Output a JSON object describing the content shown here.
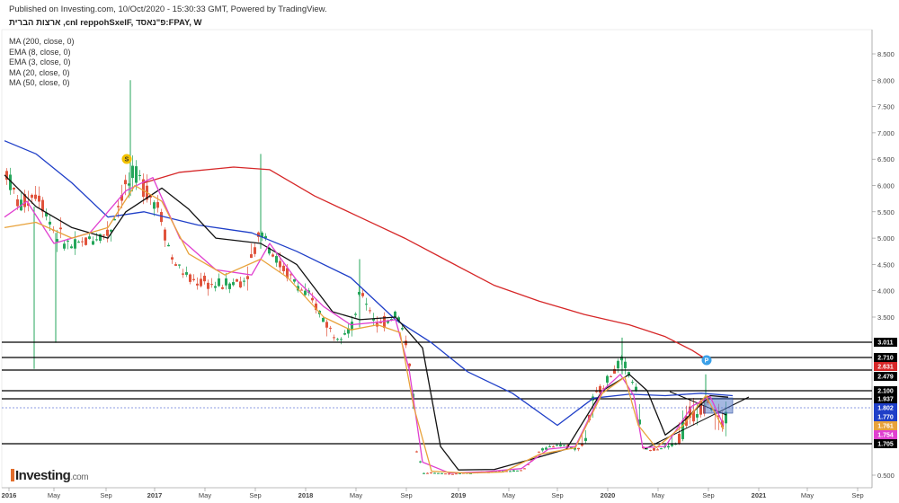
{
  "header": {
    "published": "Published on Investing.com, 10/Oct/2020 - 15:30:33 GMT, Powered by TradingView.",
    "title": "ארצות הברית ,cnI reppohSxelF, פ\"נאסד:FPAY, W"
  },
  "indicators": [
    "MA (200, close, 0)",
    "EMA (8, close, 0)",
    "EMA (3, close, 0)",
    "MA (20, close, 0)",
    "MA (50, close, 0)"
  ],
  "watermark": {
    "brand": "Investing",
    "suffix": ".com"
  },
  "colors": {
    "up": "#26a65b",
    "down": "#e0533c",
    "ma200": "#d62728",
    "ma50": "#1f3fc8",
    "ma20": "#111111",
    "ema8": "#e040d0",
    "ema3": "#e8a23a",
    "hline": "#000000"
  },
  "chart_data": {
    "type": "candlestick",
    "y_ticks": [
      "8.500",
      "8.000",
      "7.500",
      "7.000",
      "6.500",
      "6.000",
      "5.500",
      "5.000",
      "4.500",
      "4.000",
      "3.500",
      "0.500"
    ],
    "x_ticks": [
      "2016",
      "May",
      "Sep",
      "2017",
      "May",
      "Sep",
      "2018",
      "May",
      "Sep",
      "2019",
      "May",
      "Sep",
      "2020",
      "May",
      "Sep",
      "2021",
      "May",
      "Sep"
    ],
    "horizontal_levels": [
      "3.011",
      "2.710",
      "2.479",
      "2.100",
      "1.937",
      "1.705"
    ],
    "price_tags": [
      {
        "label": "3.011",
        "color": "#000000"
      },
      {
        "label": "2.710",
        "color": "#000000"
      },
      {
        "label": "2.631",
        "color": "#d62728"
      },
      {
        "label": "2.479",
        "color": "#000000"
      },
      {
        "label": "2.100",
        "color": "#000000"
      },
      {
        "label": "1.937",
        "color": "#000000"
      },
      {
        "label": "1.802",
        "color": "#1f3fc8"
      },
      {
        "label": "1.770",
        "color": "#1f3fc8"
      },
      {
        "label": "1.761",
        "color": "#e8a23a"
      },
      {
        "label": "1.754",
        "color": "#e040d0"
      },
      {
        "label": "1.705",
        "color": "#000000"
      }
    ],
    "markers": [
      {
        "label": "S",
        "color": "#f2c200"
      },
      {
        "label": "P",
        "color": "#3aa0e8"
      }
    ],
    "series": [
      {
        "name": "MA (200, close, 0)",
        "points": [
          [
            160,
            6.05
          ],
          [
            200,
            6.25
          ],
          [
            260,
            6.35
          ],
          [
            300,
            6.3
          ],
          [
            350,
            5.8
          ],
          [
            400,
            5.4
          ],
          [
            450,
            5.0
          ],
          [
            500,
            4.55
          ],
          [
            550,
            4.1
          ],
          [
            600,
            3.8
          ],
          [
            650,
            3.55
          ],
          [
            700,
            3.35
          ],
          [
            740,
            3.12
          ],
          [
            770,
            2.85
          ],
          [
            788,
            2.65
          ]
        ]
      },
      {
        "name": "MA (50, close, 0)",
        "points": [
          [
            5,
            6.85
          ],
          [
            40,
            6.6
          ],
          [
            80,
            6.05
          ],
          [
            120,
            5.4
          ],
          [
            160,
            5.5
          ],
          [
            220,
            5.25
          ],
          [
            280,
            5.1
          ],
          [
            330,
            4.75
          ],
          [
            390,
            4.25
          ],
          [
            440,
            3.45
          ],
          [
            480,
            3.0
          ],
          [
            520,
            2.45
          ],
          [
            570,
            2.05
          ],
          [
            620,
            1.8
          ],
          [
            660,
            1.95
          ],
          [
            700,
            2.03
          ],
          [
            740,
            2.0
          ],
          [
            780,
            2.05
          ],
          [
            815,
            2.0
          ]
        ]
      },
      {
        "name": "MA (20, close, 0)",
        "points": [
          [
            5,
            6.2
          ],
          [
            40,
            5.6
          ],
          [
            80,
            5.2
          ],
          [
            120,
            5.0
          ],
          [
            140,
            5.5
          ],
          [
            180,
            5.95
          ],
          [
            210,
            5.55
          ],
          [
            240,
            5.0
          ],
          [
            290,
            4.9
          ],
          [
            330,
            4.5
          ],
          [
            370,
            3.6
          ],
          [
            400,
            3.45
          ],
          [
            440,
            3.5
          ],
          [
            470,
            2.9
          ],
          [
            490,
            1.6
          ],
          [
            510,
            0.7
          ],
          [
            550,
            0.72
          ],
          [
            590,
            1.1
          ],
          [
            630,
            1.5
          ],
          [
            670,
            2.1
          ],
          [
            700,
            2.4
          ],
          [
            720,
            2.1
          ],
          [
            740,
            1.75
          ],
          [
            760,
            1.82
          ],
          [
            790,
            2.0
          ],
          [
            810,
            1.97
          ]
        ]
      },
      {
        "name": "EMA (8, close, 0)",
        "points": [
          [
            5,
            5.4
          ],
          [
            30,
            5.7
          ],
          [
            60,
            4.9
          ],
          [
            100,
            5.1
          ],
          [
            140,
            5.9
          ],
          [
            170,
            6.15
          ],
          [
            200,
            5.0
          ],
          [
            240,
            4.4
          ],
          [
            280,
            4.3
          ],
          [
            300,
            4.9
          ],
          [
            330,
            4.2
          ],
          [
            360,
            3.7
          ],
          [
            390,
            3.35
          ],
          [
            420,
            3.4
          ],
          [
            440,
            3.45
          ],
          [
            455,
            2.5
          ],
          [
            470,
            1.0
          ],
          [
            500,
            0.58
          ],
          [
            540,
            0.63
          ],
          [
            580,
            0.75
          ],
          [
            610,
            1.5
          ],
          [
            640,
            1.6
          ],
          [
            670,
            2.1
          ],
          [
            690,
            2.4
          ],
          [
            705,
            2.0
          ],
          [
            715,
            1.55
          ],
          [
            740,
            1.6
          ],
          [
            770,
            1.9
          ],
          [
            790,
            1.98
          ],
          [
            805,
            1.8
          ]
        ]
      },
      {
        "name": "EMA (3, close, 0)",
        "points": [
          [
            5,
            5.2
          ],
          [
            40,
            5.3
          ],
          [
            80,
            5.0
          ],
          [
            120,
            5.2
          ],
          [
            150,
            6.0
          ],
          [
            180,
            5.7
          ],
          [
            210,
            4.7
          ],
          [
            250,
            4.3
          ],
          [
            290,
            4.6
          ],
          [
            320,
            4.25
          ],
          [
            360,
            3.5
          ],
          [
            390,
            3.25
          ],
          [
            420,
            3.35
          ],
          [
            445,
            3.2
          ],
          [
            460,
            1.9
          ],
          [
            480,
            0.65
          ],
          [
            520,
            0.58
          ],
          [
            560,
            0.62
          ],
          [
            600,
            1.3
          ],
          [
            640,
            1.55
          ],
          [
            670,
            2.05
          ],
          [
            695,
            2.35
          ],
          [
            710,
            1.8
          ],
          [
            730,
            1.55
          ],
          [
            760,
            1.8
          ],
          [
            785,
            2.0
          ],
          [
            805,
            1.78
          ]
        ]
      }
    ]
  }
}
